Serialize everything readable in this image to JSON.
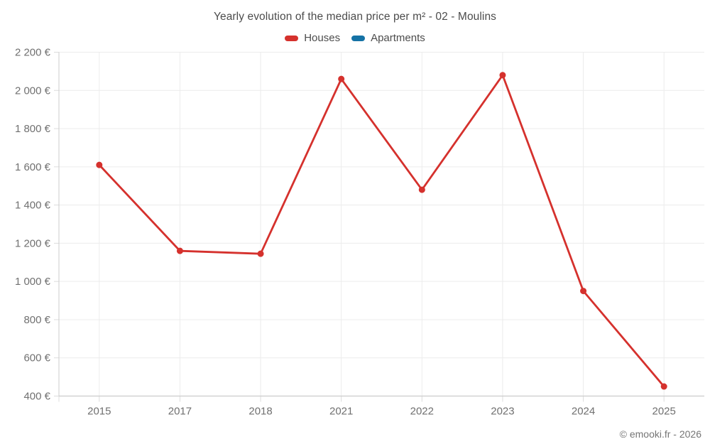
{
  "title": "Yearly evolution of the median price per m² - 02 - Moulins",
  "legend": {
    "items": [
      {
        "label": "Houses",
        "color": "#d5312d"
      },
      {
        "label": "Apartments",
        "color": "#1572a5"
      }
    ]
  },
  "footer": {
    "credit": "© emooki.fr - 2026"
  },
  "chart_data": {
    "type": "line",
    "title": "Yearly evolution of the median price per m² - 02 - Moulins",
    "categories": [
      "2015",
      "2017",
      "2018",
      "2021",
      "2022",
      "2023",
      "2024",
      "2025"
    ],
    "series": [
      {
        "name": "Houses",
        "color": "#d5312d",
        "values": [
          1610,
          1160,
          1145,
          2060,
          1480,
          2080,
          950,
          450
        ]
      },
      {
        "name": "Apartments",
        "color": "#1572a5",
        "values": []
      }
    ],
    "xlabel": "",
    "ylabel": "",
    "ylim": [
      400,
      2200
    ],
    "y_ticks": [
      400,
      600,
      800,
      1000,
      1200,
      1400,
      1600,
      1800,
      2000,
      2200
    ],
    "y_tick_labels": [
      "400 €",
      "600 €",
      "800 €",
      "1 000 €",
      "1 200 €",
      "1 400 €",
      "1 600 €",
      "1 800 €",
      "2 000 €",
      "2 200 €"
    ],
    "grid": true,
    "legend_position": "top",
    "colors": {
      "gridline": "#ececec",
      "axis_line": "#cccccc",
      "tick": "#dcdcdc",
      "axis_text": "#707070"
    }
  }
}
